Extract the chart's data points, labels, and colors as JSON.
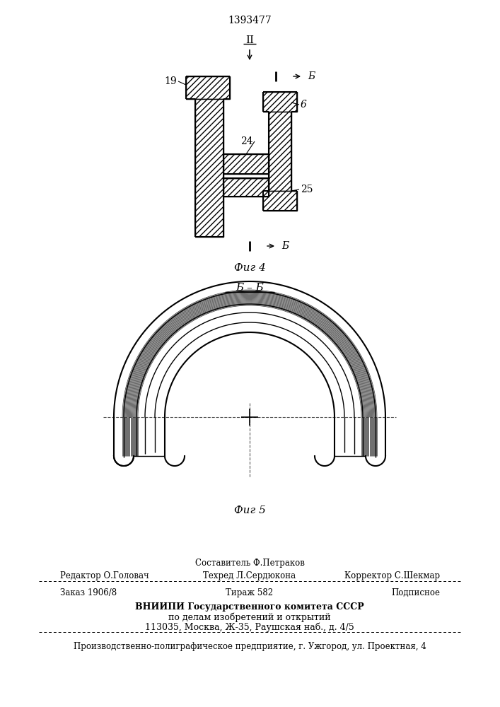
{
  "patent_number": "1393477",
  "fig4_label": "Фиг 4",
  "fig5_label": "Фиг 5",
  "section_label_b": "Б",
  "section_label_bb": "Б – Б",
  "arrow_II_label": "ІІ",
  "label_19": "19",
  "label_24": "24",
  "label_6": "6",
  "label_25": "25",
  "footer_sostavitel": "Составитель Ф.Петраков",
  "footer_redaktor": "Редактор О.Головач",
  "footer_tehred": "Техред Л.Сердюкона",
  "footer_korrektor": "Корректор С.Шекмар",
  "footer_zakaz": "Заказ 1906/8",
  "footer_tirazh": "Тираж 582",
  "footer_podpisnoe": "Подписное",
  "footer_vniiipi": "ВНИИПИ Государственного комитета СССР",
  "footer_podel": "по делам изобретений и открытий",
  "footer_address": "113035, Москва, Ж-35, Раушская наб., д. 4/5",
  "footer_ppp": "Производственно-полиграфическое предприятие, г. Ужгород, ул. Проектная, 4",
  "bg_color": "#ffffff",
  "lc": "#000000"
}
